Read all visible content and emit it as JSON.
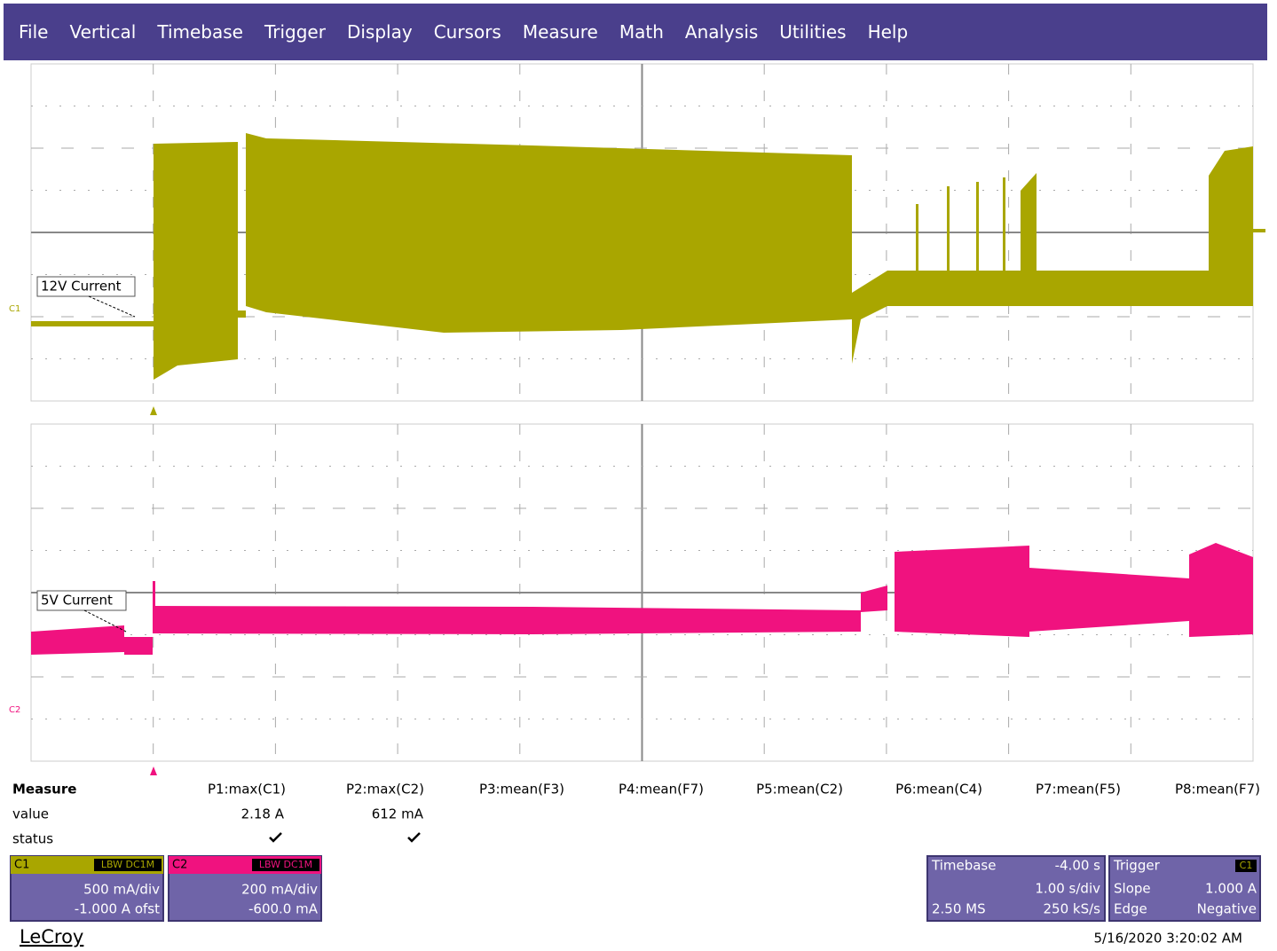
{
  "menu": [
    "File",
    "Vertical",
    "Timebase",
    "Trigger",
    "Display",
    "Cursors",
    "Measure",
    "Math",
    "Analysis",
    "Utilities",
    "Help"
  ],
  "traces": [
    {
      "label": "12V Current",
      "channel": "C1"
    },
    {
      "label": "5V Current",
      "channel": "C2"
    }
  ],
  "measure": {
    "headers": [
      "Measure",
      "P1:max(C1)",
      "P2:max(C2)",
      "P3:mean(F3)",
      "P4:mean(F7)",
      "P5:mean(C2)",
      "P6:mean(C4)",
      "P7:mean(F5)",
      "P8:mean(F7)"
    ],
    "rows": [
      [
        "value",
        "2.18 A",
        "612 mA"
      ],
      [
        "status"
      ]
    ]
  },
  "channels": [
    {
      "name": "C1",
      "tag": "LBW DC1M",
      "scale": "500 mA/div",
      "offset": "-1.000 A ofst"
    },
    {
      "name": "C2",
      "tag": "LBW DC1M",
      "scale": "200 mA/div",
      "offset": "-600.0 mA"
    }
  ],
  "timebase": {
    "title": "Timebase",
    "delay": "-4.00 s",
    "scale": "1.00 s/div",
    "samples": "2.50 MS",
    "rate": "250 kS/s"
  },
  "trigger": {
    "title": "Trigger",
    "channel": "C1",
    "slope_label": "Slope",
    "level": "1.000 A",
    "type": "Edge",
    "slope": "Negative"
  },
  "brand": "LeCroy",
  "timestamp": "5/16/2020 3:20:02 AM"
}
